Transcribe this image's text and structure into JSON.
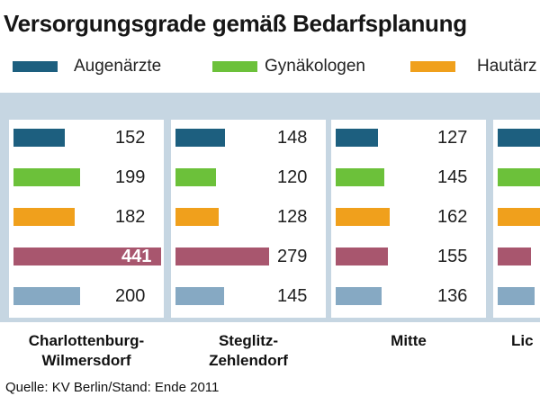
{
  "chart_data": {
    "type": "bar",
    "title": "Versorgungsgrade gemäß Bedarfsplanung",
    "source": "Quelle: KV Berlin/Stand: Ende 2011",
    "series_legend": [
      {
        "name": "Augenärzte",
        "color": "#1d5f7f"
      },
      {
        "name": "Gynäkologen",
        "color": "#6cc13a"
      },
      {
        "name": "Hautärz",
        "color": "#f0a01c"
      }
    ],
    "row_colors": [
      "#1d5f7f",
      "#6cc13a",
      "#f0a01c",
      "#a8566e",
      "#86a9c3"
    ],
    "categories": [
      "Charlottenburg-\nWilmersdorf",
      "Steglitz-\nZehlendorf",
      "Mitte",
      "Lic"
    ],
    "groups": [
      {
        "values": [
          152,
          199,
          182,
          441,
          200
        ],
        "labels": [
          "152",
          "199",
          "182",
          "441",
          "200"
        ]
      },
      {
        "values": [
          148,
          120,
          128,
          279,
          145
        ],
        "labels": [
          "148",
          "120",
          "128",
          "279",
          "145"
        ]
      },
      {
        "values": [
          127,
          145,
          162,
          155,
          136
        ],
        "labels": [
          "127",
          "145",
          "162",
          "155",
          "136"
        ]
      },
      {
        "values": [
          140,
          130,
          150,
          100,
          110
        ],
        "labels": [
          "",
          "",
          "",
          "",
          ""
        ]
      }
    ]
  }
}
